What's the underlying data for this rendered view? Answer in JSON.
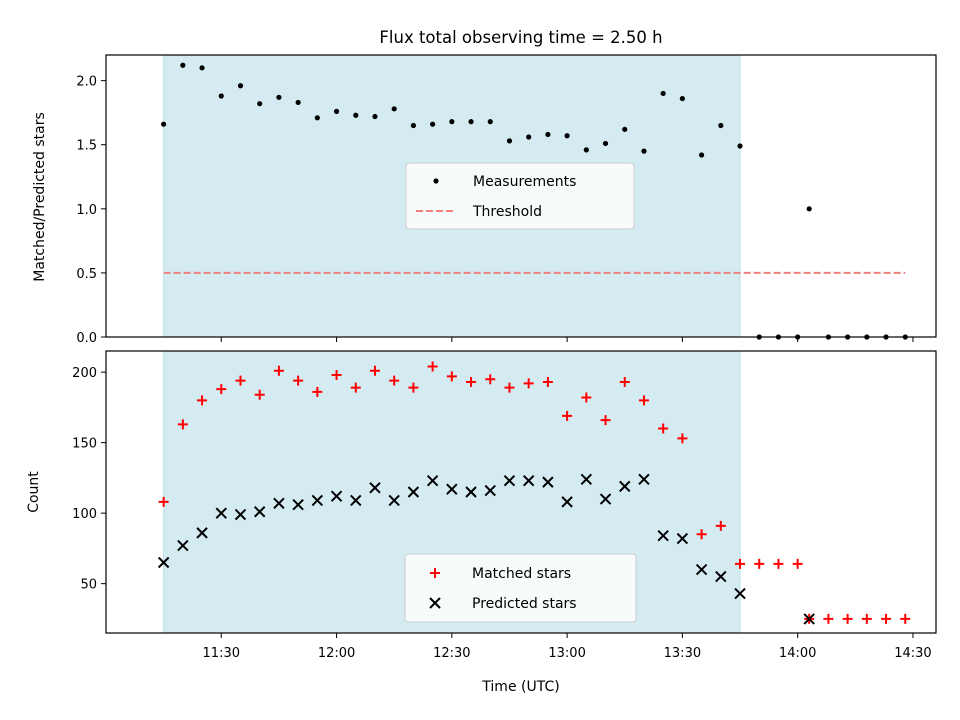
{
  "chart_data": [
    {
      "type": "scatter",
      "title": "Flux total observing time = 2.50 h",
      "ylabel": "Matched/Predicted stars",
      "xlabel": "",
      "xlim": [
        "11:00",
        "14:36"
      ],
      "ylim": [
        0,
        2.2
      ],
      "yticks": [
        "0.0",
        "0.5",
        "1.0",
        "1.5",
        "2.0"
      ],
      "shaded_region": {
        "start": "11:15",
        "end": "13:45",
        "color": "#d4ebf1"
      },
      "legend_position": "center",
      "legend": [
        "Measurements",
        "Threshold"
      ],
      "series": [
        {
          "name": "Measurements",
          "marker": "dot",
          "color": "#000000",
          "x": [
            "11:15",
            "11:20",
            "11:25",
            "11:30",
            "11:35",
            "11:40",
            "11:45",
            "11:50",
            "11:55",
            "12:00",
            "12:05",
            "12:10",
            "12:15",
            "12:20",
            "12:25",
            "12:30",
            "12:35",
            "12:40",
            "12:45",
            "12:50",
            "12:55",
            "13:00",
            "13:05",
            "13:10",
            "13:15",
            "13:20",
            "13:25",
            "13:30",
            "13:35",
            "13:40",
            "13:45",
            "13:50",
            "13:55",
            "14:00",
            "14:03",
            "14:08",
            "14:13",
            "14:18",
            "14:23",
            "14:28"
          ],
          "y": [
            1.66,
            2.12,
            2.1,
            1.88,
            1.96,
            1.82,
            1.87,
            1.83,
            1.71,
            1.76,
            1.73,
            1.72,
            1.78,
            1.65,
            1.66,
            1.68,
            1.68,
            1.68,
            1.53,
            1.56,
            1.58,
            1.57,
            1.46,
            1.51,
            1.62,
            1.45,
            1.9,
            1.86,
            1.42,
            1.65,
            1.49,
            0,
            0,
            0,
            1.0,
            0,
            0,
            0,
            0,
            0
          ]
        },
        {
          "name": "Threshold",
          "marker": "dashed-line",
          "color": "#f08080",
          "x": [
            "11:15",
            "14:28"
          ],
          "y": [
            0.5,
            0.5
          ]
        }
      ]
    },
    {
      "type": "scatter",
      "title": "",
      "ylabel": "Count",
      "xlabel": "Time (UTC)",
      "xlim": [
        "11:00",
        "14:36"
      ],
      "ylim": [
        15,
        215
      ],
      "yticks": [
        "50",
        "100",
        "150",
        "200"
      ],
      "xticks": [
        "11:30",
        "12:00",
        "12:30",
        "13:00",
        "13:30",
        "14:00",
        "14:30"
      ],
      "shaded_region": {
        "start": "11:15",
        "end": "13:45",
        "color": "#d4ebf1"
      },
      "legend_position": "lower center",
      "legend": [
        "Matched stars",
        "Predicted stars"
      ],
      "series": [
        {
          "name": "Matched stars",
          "marker": "plus",
          "color": "#ff0000",
          "x": [
            "11:15",
            "11:20",
            "11:25",
            "11:30",
            "11:35",
            "11:40",
            "11:45",
            "11:50",
            "11:55",
            "12:00",
            "12:05",
            "12:10",
            "12:15",
            "12:20",
            "12:25",
            "12:30",
            "12:35",
            "12:40",
            "12:45",
            "12:50",
            "12:55",
            "13:00",
            "13:05",
            "13:10",
            "13:15",
            "13:20",
            "13:25",
            "13:30",
            "13:35",
            "13:40",
            "13:45",
            "13:50",
            "13:55",
            "14:00",
            "14:03",
            "14:08",
            "14:13",
            "14:18",
            "14:23",
            "14:28"
          ],
          "y": [
            108,
            163,
            180,
            188,
            194,
            184,
            201,
            194,
            186,
            198,
            189,
            201,
            194,
            189,
            204,
            197,
            193,
            195,
            189,
            192,
            193,
            169,
            182,
            166,
            193,
            180,
            160,
            153,
            85,
            91,
            64,
            64,
            64,
            64,
            25,
            25,
            25,
            25,
            25,
            25
          ]
        },
        {
          "name": "Predicted stars",
          "marker": "x",
          "color": "#000000",
          "x": [
            "11:15",
            "11:20",
            "11:25",
            "11:30",
            "11:35",
            "11:40",
            "11:45",
            "11:50",
            "11:55",
            "12:00",
            "12:05",
            "12:10",
            "12:15",
            "12:20",
            "12:25",
            "12:30",
            "12:35",
            "12:40",
            "12:45",
            "12:50",
            "12:55",
            "13:00",
            "13:05",
            "13:10",
            "13:15",
            "13:20",
            "13:25",
            "13:30",
            "13:35",
            "13:40",
            "13:45",
            "14:03"
          ],
          "y": [
            65,
            77,
            86,
            100,
            99,
            101,
            107,
            106,
            109,
            112,
            109,
            118,
            109,
            115,
            123,
            117,
            115,
            116,
            123,
            123,
            122,
            108,
            124,
            110,
            119,
            124,
            84,
            82,
            60,
            55,
            43,
            25
          ]
        }
      ]
    }
  ]
}
